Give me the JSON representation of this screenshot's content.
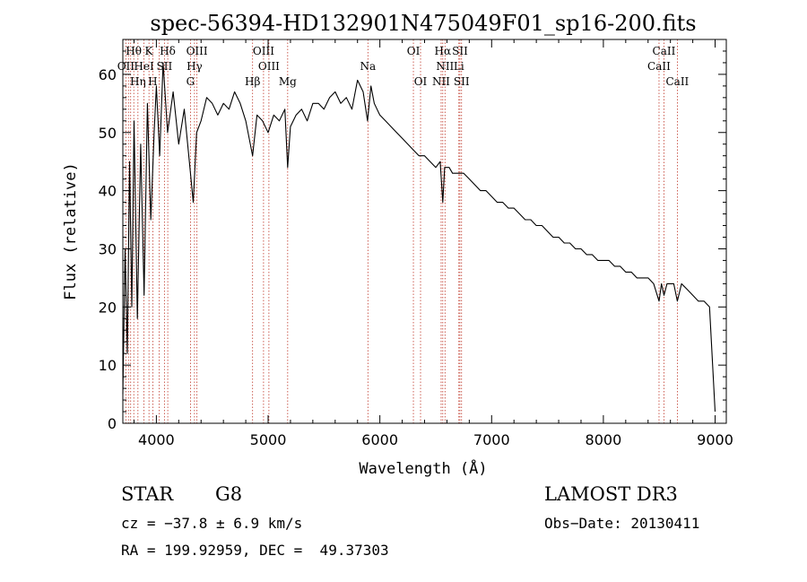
{
  "chart_data": {
    "type": "line",
    "title": "spec-56394-HD132901N475049F01_sp16-200.fits",
    "xlabel": "Wavelength (Å)",
    "ylabel": "Flux (relative)",
    "xlim": [
      3700,
      9100
    ],
    "ylim": [
      0,
      66
    ],
    "x_ticks": [
      4000,
      5000,
      6000,
      7000,
      8000,
      9000
    ],
    "y_ticks": [
      0,
      10,
      20,
      30,
      40,
      50,
      60
    ],
    "x_tick_labels": [
      "4000",
      "5000",
      "6000",
      "7000",
      "8000",
      "9000"
    ],
    "y_tick_labels": [
      "0",
      "10",
      "20",
      "30",
      "40",
      "50",
      "60"
    ],
    "grid": false,
    "series": [
      {
        "name": "flux",
        "color": "#000000",
        "x": [
          3700,
          3720,
          3740,
          3760,
          3780,
          3800,
          3830,
          3860,
          3890,
          3920,
          3950,
          3980,
          4000,
          4030,
          4060,
          4100,
          4150,
          4200,
          4250,
          4300,
          4330,
          4360,
          4400,
          4450,
          4500,
          4550,
          4600,
          4650,
          4700,
          4750,
          4800,
          4861,
          4900,
          4950,
          5000,
          5050,
          5100,
          5150,
          5175,
          5200,
          5250,
          5300,
          5350,
          5400,
          5450,
          5500,
          5550,
          5600,
          5650,
          5700,
          5750,
          5800,
          5850,
          5890,
          5920,
          5950,
          6000,
          6050,
          6100,
          6150,
          6200,
          6250,
          6300,
          6350,
          6400,
          6450,
          6500,
          6540,
          6563,
          6580,
          6620,
          6650,
          6700,
          6750,
          6800,
          6850,
          6900,
          6950,
          7000,
          7050,
          7100,
          7150,
          7200,
          7250,
          7300,
          7350,
          7400,
          7450,
          7500,
          7550,
          7600,
          7650,
          7700,
          7750,
          7800,
          7850,
          7900,
          7950,
          8000,
          8050,
          8100,
          8150,
          8200,
          8250,
          8300,
          8350,
          8400,
          8450,
          8498,
          8520,
          8542,
          8570,
          8600,
          8630,
          8662,
          8700,
          8750,
          8800,
          8850,
          8900,
          8950,
          9000
        ],
        "y": [
          5,
          30,
          12,
          45,
          20,
          52,
          18,
          48,
          22,
          55,
          35,
          50,
          58,
          46,
          62,
          50,
          57,
          48,
          54,
          44,
          38,
          50,
          52,
          56,
          55,
          53,
          55,
          54,
          57,
          55,
          52,
          46,
          53,
          52,
          50,
          53,
          52,
          54,
          44,
          51,
          53,
          54,
          52,
          55,
          55,
          54,
          56,
          57,
          55,
          56,
          54,
          59,
          57,
          52,
          58,
          55,
          53,
          52,
          51,
          50,
          49,
          48,
          47,
          46,
          46,
          45,
          44,
          45,
          38,
          44,
          44,
          43,
          43,
          43,
          42,
          41,
          40,
          40,
          39,
          38,
          38,
          37,
          37,
          36,
          35,
          35,
          34,
          34,
          33,
          32,
          32,
          31,
          31,
          30,
          30,
          29,
          29,
          28,
          28,
          28,
          27,
          27,
          26,
          26,
          25,
          25,
          25,
          24,
          21,
          24,
          22,
          24,
          24,
          24,
          21,
          24,
          23,
          22,
          21,
          21,
          20,
          2
        ]
      }
    ],
    "line_markers": {
      "color": "#c0392b",
      "x": [
        3727,
        3750,
        3770,
        3798,
        3835,
        3889,
        3934,
        3968,
        4026,
        4072,
        4102,
        4305,
        4341,
        4363,
        4861,
        4959,
        5007,
        5175,
        5893,
        6300,
        6364,
        6548,
        6563,
        6583,
        6707,
        6716,
        6731,
        8498,
        8542,
        8662
      ],
      "labels_row1": [
        {
          "text": "Hθ",
          "x": 3797
        },
        {
          "text": "K",
          "x": 3933
        },
        {
          "text": "Hδ",
          "x": 4101
        },
        {
          "text": "OIII",
          "x": 4363
        },
        {
          "text": "OIII",
          "x": 4959
        },
        {
          "text": "OI",
          "x": 6300
        },
        {
          "text": "Hα",
          "x": 6563
        },
        {
          "text": "SII",
          "x": 6717
        },
        {
          "text": "CaII",
          "x": 8542
        }
      ],
      "labels_row2": [
        {
          "text": "OII",
          "x": 3727
        },
        {
          "text": "HeI",
          "x": 3889
        },
        {
          "text": "SII",
          "x": 4072
        },
        {
          "text": "Hγ",
          "x": 4341
        },
        {
          "text": "OIII",
          "x": 5007
        },
        {
          "text": "Na",
          "x": 5893
        },
        {
          "text": "NII",
          "x": 6583
        },
        {
          "text": "Li",
          "x": 6707
        },
        {
          "text": "CaII",
          "x": 8498
        }
      ],
      "labels_row3": [
        {
          "text": "Hη",
          "x": 3835
        },
        {
          "text": "H",
          "x": 3968
        },
        {
          "text": "G",
          "x": 4305
        },
        {
          "text": "Hβ",
          "x": 4861
        },
        {
          "text": "Mg",
          "x": 5175
        },
        {
          "text": "OI",
          "x": 6364
        },
        {
          "text": "NII",
          "x": 6548
        },
        {
          "text": "SII",
          "x": 6731
        },
        {
          "text": "CaII",
          "x": 8662
        }
      ]
    }
  },
  "info": {
    "object_class": "STAR",
    "subclass": "G8",
    "survey": "LAMOST DR3",
    "cz": "cz = −37.8 ± 6.9 km/s",
    "obs_date": "Obs−Date: 20130411",
    "coords": "RA = 199.92959, DEC =  49.37303"
  }
}
